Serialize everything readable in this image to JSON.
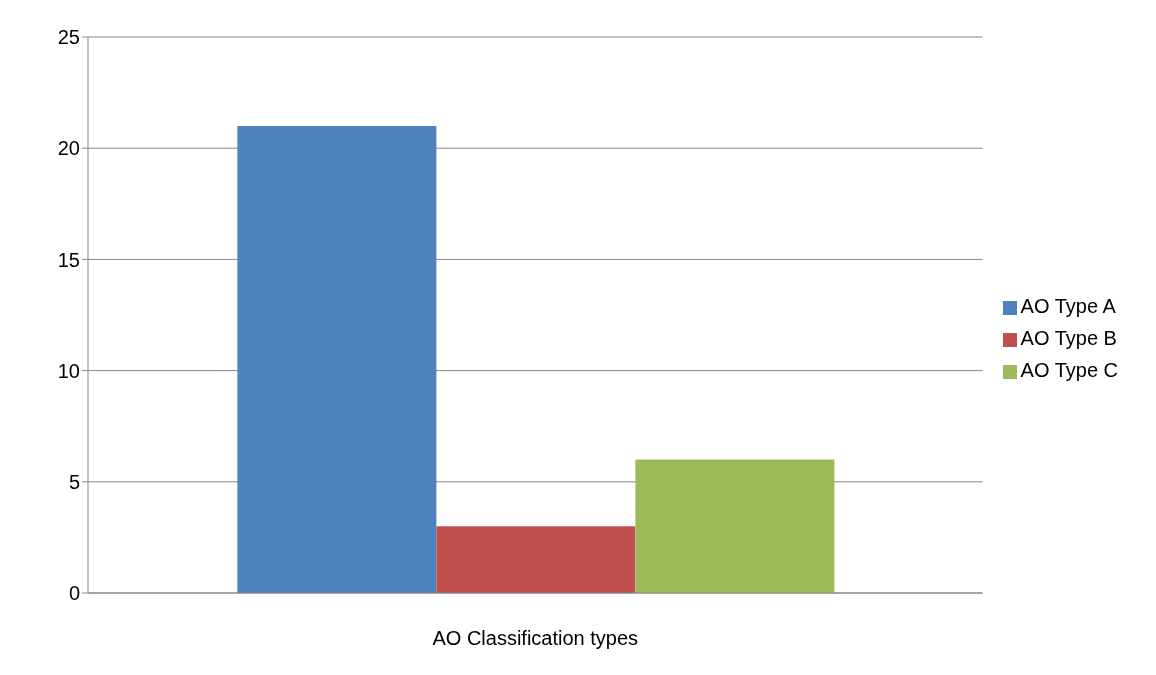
{
  "chart_data": {
    "type": "bar",
    "categories": [
      "AO Classification types"
    ],
    "series": [
      {
        "name": "AO Type A",
        "color": "#4f81bd",
        "values": [
          21
        ]
      },
      {
        "name": "AO Type B",
        "color": "#c0504d",
        "values": [
          3
        ]
      },
      {
        "name": "AO Type C",
        "color": "#9bbb59",
        "values": [
          6
        ]
      }
    ],
    "ylim": [
      0,
      25
    ],
    "yticks": [
      0,
      5,
      10,
      15,
      20,
      25
    ],
    "grid": "y",
    "legend": "right"
  }
}
